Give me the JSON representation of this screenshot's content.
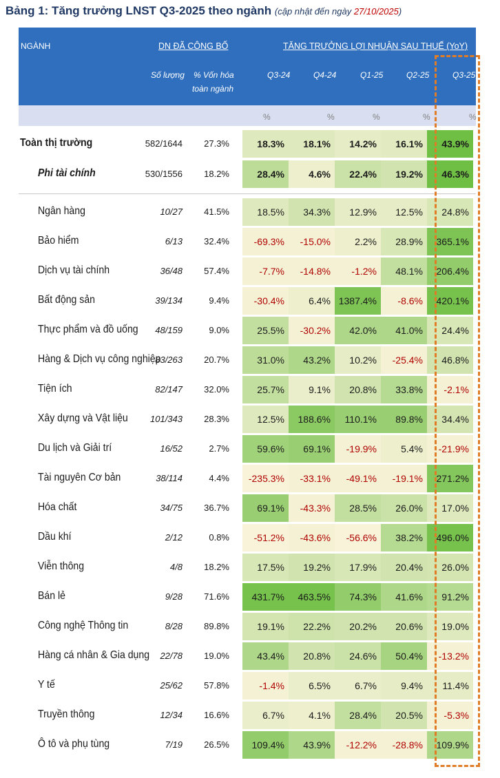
{
  "title": {
    "main": "Bảng 1: Tăng trưởng LNST Q3-2025 theo ngành",
    "note": "(cập nhật đến ngày ",
    "date": "27/10/2025",
    "close": ")"
  },
  "header": {
    "col_nganh": "NGÀNH",
    "group_dn": "DN ĐÃ CÔNG BỐ",
    "group_growth": "TĂNG TRƯỞNG LỢI NHUẬN SAU THUẾ (YoY)",
    "col_count": "Số lượng",
    "col_cap_1": "% Vốn hóa",
    "col_cap_2": "toàn ngành",
    "quarters": [
      "Q3-24",
      "Q4-24",
      "Q1-25",
      "Q2-25",
      "Q3-25"
    ],
    "unit": "%"
  },
  "summary": [
    {
      "name": "Toàn thị trường",
      "count": "582/1644",
      "cap": "27.3%",
      "values": [
        "18.3%",
        "18.1%",
        "14.2%",
        "16.1%",
        "43.9%"
      ],
      "shade": [
        0.2,
        0.2,
        0.15,
        0.18,
        1.0
      ]
    },
    {
      "name": "Phi tài chính",
      "count": "530/1556",
      "cap": "18.2%",
      "values": [
        "28.4%",
        "4.6%",
        "22.4%",
        "19.2%",
        "46.3%"
      ],
      "shade": [
        0.45,
        0.1,
        0.35,
        0.3,
        1.0
      ]
    }
  ],
  "rows": [
    {
      "name": "Ngân hàng",
      "count": "10/27",
      "cap": "41.5%",
      "values": [
        "18.5%",
        "34.3%",
        "12.9%",
        "12.5%",
        "24.8%"
      ],
      "shade": [
        0.2,
        0.3,
        0.15,
        0.15,
        0.25
      ]
    },
    {
      "name": "Bảo hiểm",
      "count": "6/13",
      "cap": "32.4%",
      "values": [
        "-69.3%",
        "-15.0%",
        "2.2%",
        "28.9%",
        "365.1%"
      ],
      "shade": [
        0.05,
        0.05,
        0.1,
        0.25,
        0.9
      ]
    },
    {
      "name": "Dịch vụ tài chính",
      "count": "36/48",
      "cap": "57.4%",
      "values": [
        "-7.7%",
        "-14.8%",
        "-1.2%",
        "48.1%",
        "206.4%"
      ],
      "shade": [
        0.05,
        0.05,
        0.05,
        0.4,
        0.75
      ]
    },
    {
      "name": "Bất động sản",
      "count": "39/134",
      "cap": "9.4%",
      "values": [
        "-30.4%",
        "6.4%",
        "1387.4%",
        "-8.6%",
        "420.1%"
      ],
      "shade": [
        0.05,
        0.1,
        0.9,
        0.05,
        0.95
      ]
    },
    {
      "name": "Thực phẩm và đồ uống",
      "count": "48/159",
      "cap": "9.0%",
      "values": [
        "25.5%",
        "-30.2%",
        "42.0%",
        "41.0%",
        "24.4%"
      ],
      "shade": [
        0.4,
        0.05,
        0.55,
        0.55,
        0.25
      ]
    },
    {
      "name": "Hàng & Dịch vụ công nghiệp",
      "count": "83/263",
      "cap": "20.7%",
      "values": [
        "31.0%",
        "43.2%",
        "10.2%",
        "-25.4%",
        "46.8%"
      ],
      "shade": [
        0.45,
        0.55,
        0.15,
        0.05,
        0.3
      ]
    },
    {
      "name": "Tiện ích",
      "count": "82/147",
      "cap": "32.0%",
      "values": [
        "25.7%",
        "9.1%",
        "20.8%",
        "33.8%",
        "-2.1%"
      ],
      "shade": [
        0.4,
        0.12,
        0.3,
        0.5,
        0.05
      ]
    },
    {
      "name": "Xây dựng và Vật liệu",
      "count": "101/343",
      "cap": "28.3%",
      "values": [
        "12.5%",
        "188.6%",
        "110.1%",
        "89.8%",
        "34.4%"
      ],
      "shade": [
        0.2,
        0.8,
        0.7,
        0.7,
        0.28
      ]
    },
    {
      "name": "Du lịch và Giải trí",
      "count": "16/52",
      "cap": "2.7%",
      "values": [
        "59.6%",
        "69.1%",
        "-19.9%",
        "5.4%",
        "-21.9%"
      ],
      "shade": [
        0.65,
        0.7,
        0.05,
        0.1,
        0.05
      ]
    },
    {
      "name": "Tài nguyên Cơ bản",
      "count": "38/114",
      "cap": "4.4%",
      "values": [
        "-235.3%",
        "-33.1%",
        "-49.1%",
        "-19.1%",
        "271.2%"
      ],
      "shade": [
        0.02,
        0.05,
        0.05,
        0.05,
        0.85
      ]
    },
    {
      "name": "Hóa chất",
      "count": "34/75",
      "cap": "36.7%",
      "values": [
        "69.1%",
        "-43.3%",
        "28.5%",
        "26.0%",
        "17.0%"
      ],
      "shade": [
        0.7,
        0.05,
        0.4,
        0.35,
        0.2
      ]
    },
    {
      "name": "Dầu khí",
      "count": "2/12",
      "cap": "0.8%",
      "values": [
        "-51.2%",
        "-43.6%",
        "-56.6%",
        "38.2%",
        "496.0%"
      ],
      "shade": [
        0.02,
        0.05,
        0.02,
        0.5,
        0.95
      ]
    },
    {
      "name": "Viễn thông",
      "count": "4/8",
      "cap": "18.2%",
      "values": [
        "17.5%",
        "19.2%",
        "17.9%",
        "20.4%",
        "26.0%"
      ],
      "shade": [
        0.25,
        0.3,
        0.25,
        0.3,
        0.28
      ]
    },
    {
      "name": "Bán lẻ",
      "count": "9/28",
      "cap": "71.6%",
      "values": [
        "431.7%",
        "463.5%",
        "74.3%",
        "41.6%",
        "91.2%"
      ],
      "shade": [
        0.95,
        0.95,
        0.75,
        0.55,
        0.5
      ]
    },
    {
      "name": "Công nghệ Thông tin",
      "count": "8/28",
      "cap": "89.8%",
      "values": [
        "19.1%",
        "22.2%",
        "20.2%",
        "20.6%",
        "19.0%"
      ],
      "shade": [
        0.28,
        0.32,
        0.3,
        0.3,
        0.2
      ]
    },
    {
      "name": "Hàng cá nhân & Gia dụng",
      "count": "22/78",
      "cap": "19.0%",
      "values": [
        "43.4%",
        "20.8%",
        "24.6%",
        "50.4%",
        "-13.2%"
      ],
      "shade": [
        0.55,
        0.3,
        0.35,
        0.6,
        0.05
      ]
    },
    {
      "name": "Y tế",
      "count": "25/62",
      "cap": "57.8%",
      "values": [
        "-1.4%",
        "6.5%",
        "6.7%",
        "9.4%",
        "11.4%"
      ],
      "shade": [
        0.05,
        0.12,
        0.12,
        0.15,
        0.15
      ]
    },
    {
      "name": "Truyền thông",
      "count": "12/34",
      "cap": "16.6%",
      "values": [
        "6.7%",
        "4.1%",
        "28.4%",
        "20.5%",
        "-5.3%"
      ],
      "shade": [
        0.12,
        0.1,
        0.4,
        0.3,
        0.05
      ]
    },
    {
      "name": "Ô tô và phụ tùng",
      "count": "7/19",
      "cap": "26.5%",
      "values": [
        "109.4%",
        "43.9%",
        "-12.2%",
        "-28.8%",
        "109.9%"
      ],
      "shade": [
        0.75,
        0.55,
        0.05,
        0.05,
        0.55
      ]
    }
  ],
  "colors": {
    "header": "#2f6fbe",
    "low": "#fbf4dc",
    "high": "#6fbf45",
    "neg_text": "#b00000",
    "highlight_border": "#e07b26"
  }
}
